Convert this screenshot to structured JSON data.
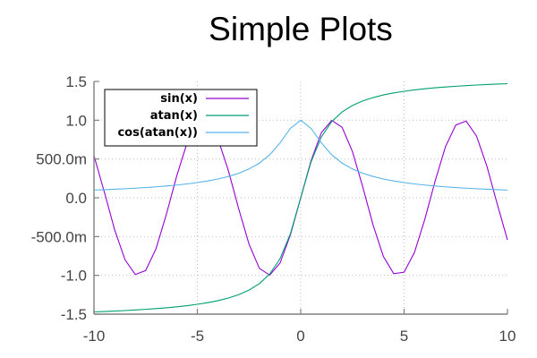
{
  "chart_data": {
    "type": "line",
    "title": "Simple Plots",
    "xlabel": "",
    "ylabel": "",
    "xlim": [
      -10,
      10
    ],
    "ylim": [
      -1.5,
      1.5
    ],
    "grid": true,
    "legend_position": "top-left",
    "x_ticks": [
      {
        "value": -10,
        "label": "-10"
      },
      {
        "value": -5,
        "label": "-5"
      },
      {
        "value": 0,
        "label": "0"
      },
      {
        "value": 5,
        "label": "5"
      },
      {
        "value": 10,
        "label": "10"
      }
    ],
    "y_ticks": [
      {
        "value": -1.5,
        "label": "-1.5"
      },
      {
        "value": -1.0,
        "label": "-1.0"
      },
      {
        "value": -0.5,
        "label": "-500.0m"
      },
      {
        "value": 0.0,
        "label": "0.0"
      },
      {
        "value": 0.5,
        "label": "500.0m"
      },
      {
        "value": 1.0,
        "label": "1.0"
      },
      {
        "value": 1.5,
        "label": "1.5"
      }
    ],
    "x": [
      -10,
      -9.5,
      -9,
      -8.5,
      -8,
      -7.5,
      -7,
      -6.5,
      -6,
      -5.5,
      -5,
      -4.5,
      -4,
      -3.5,
      -3,
      -2.5,
      -2,
      -1.5,
      -1,
      -0.5,
      0,
      0.5,
      1,
      1.5,
      2,
      2.5,
      3,
      3.5,
      4,
      4.5,
      5,
      5.5,
      6,
      6.5,
      7,
      7.5,
      8,
      8.5,
      9,
      9.5,
      10
    ],
    "series": [
      {
        "name": "sin(x)",
        "color": "#9400d3",
        "values": [
          0.544,
          0.075,
          -0.412,
          -0.798,
          -0.989,
          -0.938,
          -0.657,
          -0.215,
          0.279,
          0.706,
          0.959,
          0.978,
          0.757,
          0.351,
          -0.141,
          -0.598,
          -0.909,
          -0.997,
          -0.841,
          -0.479,
          0.0,
          0.479,
          0.841,
          0.997,
          0.909,
          0.598,
          0.141,
          -0.351,
          -0.757,
          -0.978,
          -0.959,
          -0.706,
          -0.279,
          0.215,
          0.657,
          0.938,
          0.989,
          0.798,
          0.412,
          -0.075,
          -0.544
        ]
      },
      {
        "name": "atan(x)",
        "color": "#009e73",
        "values": [
          -1.471,
          -1.466,
          -1.46,
          -1.454,
          -1.446,
          -1.438,
          -1.429,
          -1.418,
          -1.406,
          -1.391,
          -1.373,
          -1.352,
          -1.326,
          -1.292,
          -1.249,
          -1.19,
          -1.107,
          -0.983,
          -0.785,
          -0.464,
          0.0,
          0.464,
          0.785,
          0.983,
          1.107,
          1.19,
          1.249,
          1.292,
          1.326,
          1.352,
          1.373,
          1.391,
          1.406,
          1.418,
          1.429,
          1.438,
          1.446,
          1.454,
          1.46,
          1.466,
          1.471
        ]
      },
      {
        "name": "cos(atan(x))",
        "color": "#56b4e9",
        "values": [
          0.0995,
          0.1047,
          0.1104,
          0.1168,
          0.124,
          0.1322,
          0.1414,
          0.1521,
          0.1644,
          0.1789,
          0.1961,
          0.2169,
          0.2425,
          0.2747,
          0.3162,
          0.3714,
          0.4472,
          0.5547,
          0.7071,
          0.8944,
          1.0,
          0.8944,
          0.7071,
          0.5547,
          0.4472,
          0.3714,
          0.3162,
          0.2747,
          0.2425,
          0.2169,
          0.1961,
          0.1789,
          0.1644,
          0.1521,
          0.1414,
          0.1322,
          0.124,
          0.1168,
          0.1104,
          0.1047,
          0.0995
        ]
      }
    ]
  }
}
